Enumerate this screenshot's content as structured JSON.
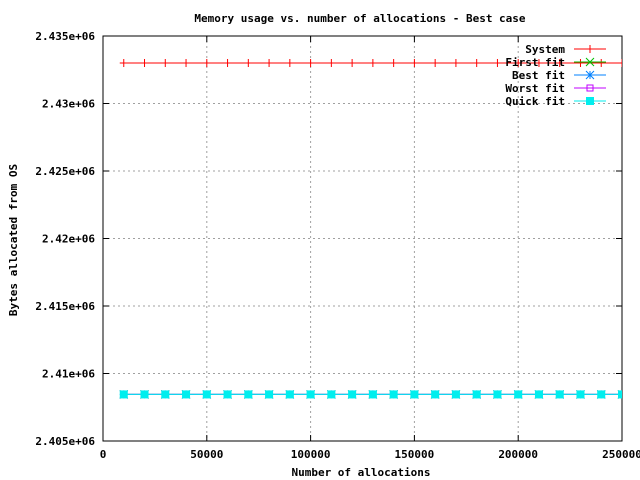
{
  "chart_data": {
    "type": "line",
    "title": "Memory usage vs. number of allocations - Best case",
    "xlabel": "Number of allocations",
    "ylabel": "Bytes allocated from OS",
    "xlim": [
      0,
      250000
    ],
    "ylim": [
      2405000,
      2435000
    ],
    "x_ticks": [
      0,
      50000,
      100000,
      150000,
      200000,
      250000
    ],
    "x_tick_labels": [
      "0",
      "50000",
      "100000",
      "150000",
      "200000",
      "250000"
    ],
    "y_ticks": [
      2405000,
      2410000,
      2415000,
      2420000,
      2425000,
      2430000,
      2435000
    ],
    "y_tick_labels": [
      "2.405e+06",
      "2.41e+06",
      "2.415e+06",
      "2.42e+06",
      "2.425e+06",
      "2.43e+06",
      "2.435e+06"
    ],
    "grid": true,
    "legend_position": "top-right",
    "x": [
      10000,
      20000,
      30000,
      40000,
      50000,
      60000,
      70000,
      80000,
      90000,
      100000,
      110000,
      120000,
      130000,
      140000,
      150000,
      160000,
      170000,
      180000,
      190000,
      200000,
      210000,
      220000,
      230000,
      240000,
      250000
    ],
    "series": [
      {
        "name": "System",
        "color": "#ff0000",
        "marker": "plus",
        "values": [
          2433000,
          2433000,
          2433000,
          2433000,
          2433000,
          2433000,
          2433000,
          2433000,
          2433000,
          2433000,
          2433000,
          2433000,
          2433000,
          2433000,
          2433000,
          2433000,
          2433000,
          2433000,
          2433000,
          2433000,
          2433000,
          2433000,
          2433000,
          2433000,
          2433000
        ]
      },
      {
        "name": "First fit",
        "color": "#00c000",
        "marker": "cross",
        "values": [
          2408450,
          2408450,
          2408450,
          2408450,
          2408450,
          2408450,
          2408450,
          2408450,
          2408450,
          2408450,
          2408450,
          2408450,
          2408450,
          2408450,
          2408450,
          2408450,
          2408450,
          2408450,
          2408450,
          2408450,
          2408450,
          2408450,
          2408450,
          2408450,
          2408450
        ]
      },
      {
        "name": "Best fit",
        "color": "#0080ff",
        "marker": "star",
        "values": [
          2408450,
          2408450,
          2408450,
          2408450,
          2408450,
          2408450,
          2408450,
          2408450,
          2408450,
          2408450,
          2408450,
          2408450,
          2408450,
          2408450,
          2408450,
          2408450,
          2408450,
          2408450,
          2408450,
          2408450,
          2408450,
          2408450,
          2408450,
          2408450,
          2408450
        ]
      },
      {
        "name": "Worst fit",
        "color": "#c000ff",
        "marker": "open-square",
        "values": [
          2408450,
          2408450,
          2408450,
          2408450,
          2408450,
          2408450,
          2408450,
          2408450,
          2408450,
          2408450,
          2408450,
          2408450,
          2408450,
          2408450,
          2408450,
          2408450,
          2408450,
          2408450,
          2408450,
          2408450,
          2408450,
          2408450,
          2408450,
          2408450,
          2408450
        ]
      },
      {
        "name": "Quick fit",
        "color": "#00eeee",
        "marker": "filled-square",
        "values": [
          2408450,
          2408450,
          2408450,
          2408450,
          2408450,
          2408450,
          2408450,
          2408450,
          2408450,
          2408450,
          2408450,
          2408450,
          2408450,
          2408450,
          2408450,
          2408450,
          2408450,
          2408450,
          2408450,
          2408450,
          2408450,
          2408450,
          2408450,
          2408450,
          2408450
        ]
      }
    ]
  }
}
